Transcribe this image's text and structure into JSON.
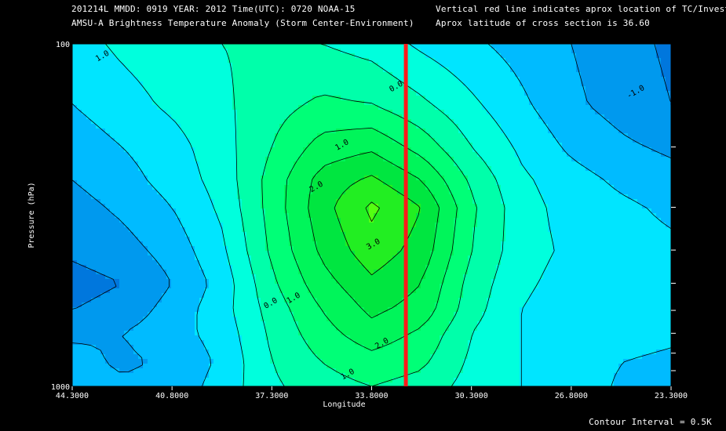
{
  "header": {
    "line1_left": "201214L  MMDD: 0919 YEAR: 2012 Time(UTC): 0720 NOAA-15",
    "line2_left": "AMSU-A Brightness Temperature Anomaly (Storm Center-Environment)",
    "line1_right": "Vertical red line indicates aprox location of TC/Invest",
    "line2_right": "Aprox latitude of cross section is 36.60"
  },
  "footer": {
    "contour_interval": "Contour Interval = 0.5K"
  },
  "chart_data": {
    "type": "heatmap",
    "xlabel": "Longitude",
    "ylabel": "Pressure (hPa)",
    "xlim": [
      44.3,
      23.3
    ],
    "ylim": [
      1000,
      100
    ],
    "y_scale": "log",
    "x_tick_labels": [
      "44.3000",
      "40.8000",
      "37.3000",
      "33.8000",
      "30.3000",
      "26.8000",
      "23.3000"
    ],
    "x_ticks": [
      44.3,
      40.8,
      37.3,
      33.8,
      30.3,
      26.8,
      23.3
    ],
    "y_tick_labels": [
      "100",
      "1000"
    ],
    "y_ticks": [
      100,
      1000
    ],
    "tc_longitude": 32.6,
    "contour_interval": 0.5,
    "contour_labels": [
      {
        "text": "1.0",
        "lon": 43.2,
        "p": 110
      },
      {
        "text": "0.0",
        "lon": 32.9,
        "p": 135
      },
      {
        "text": "1.0",
        "lon": 34.8,
        "p": 200
      },
      {
        "text": "2.0",
        "lon": 35.7,
        "p": 265
      },
      {
        "text": "3.0",
        "lon": 33.7,
        "p": 390
      },
      {
        "text": "-1.0",
        "lon": 24.5,
        "p": 140
      },
      {
        "text": "0.0",
        "lon": 37.3,
        "p": 580
      },
      {
        "text": "1.0",
        "lon": 36.5,
        "p": 560
      },
      {
        "text": "2.0",
        "lon": 33.4,
        "p": 760
      },
      {
        "text": "1.0",
        "lon": 34.6,
        "p": 935
      }
    ],
    "color_scale": [
      {
        "value": -2.0,
        "color": "#0077dd"
      },
      {
        "value": -1.5,
        "color": "#0099ee"
      },
      {
        "value": -1.0,
        "color": "#00bbff"
      },
      {
        "value": -0.5,
        "color": "#00e5ff"
      },
      {
        "value": 0.0,
        "color": "#00ffdd"
      },
      {
        "value": 0.5,
        "color": "#00ffaa"
      },
      {
        "value": 1.0,
        "color": "#00ff77"
      },
      {
        "value": 1.5,
        "color": "#00f55a"
      },
      {
        "value": 2.0,
        "color": "#00e640"
      },
      {
        "value": 2.5,
        "color": "#22ee22"
      },
      {
        "value": 3.0,
        "color": "#55ff11"
      }
    ],
    "levels_hpa": [
      100,
      150,
      200,
      250,
      300,
      400,
      500,
      600,
      700,
      850,
      1000
    ],
    "grid_lon": [
      44.3,
      42.55,
      40.8,
      39.05,
      37.3,
      35.55,
      33.8,
      32.05,
      30.3,
      28.55,
      26.8,
      25.05,
      23.3
    ],
    "values": [
      [
        -0.2,
        0.1,
        0.3,
        0.5,
        0.6,
        0.5,
        0.3,
        -0.1,
        -0.4,
        -0.7,
        -1.0,
        -1.3,
        -1.6
      ],
      [
        -0.5,
        -0.2,
        0.1,
        0.4,
        0.8,
        1.1,
        1.0,
        0.6,
        0.1,
        -0.4,
        -0.9,
        -1.2,
        -1.5
      ],
      [
        -0.8,
        -0.5,
        -0.2,
        0.3,
        1.0,
        1.7,
        1.9,
        1.3,
        0.5,
        -0.1,
        -0.6,
        -0.9,
        -1.1
      ],
      [
        -1.0,
        -0.7,
        -0.3,
        0.2,
        1.2,
        2.2,
        2.6,
        2.0,
        0.9,
        0.1,
        -0.3,
        -0.6,
        -0.8
      ],
      [
        -1.2,
        -0.9,
        -0.5,
        0.1,
        1.2,
        2.3,
        3.1,
        2.5,
        1.1,
        0.2,
        -0.2,
        -0.4,
        -0.6
      ],
      [
        -1.4,
        -1.2,
        -0.8,
        -0.1,
        1.1,
        2.1,
        2.8,
        2.3,
        1.0,
        0.2,
        -0.1,
        -0.3,
        -0.4
      ],
      [
        -1.7,
        -1.5,
        -1.0,
        -0.3,
        0.9,
        1.8,
        2.4,
        2.0,
        0.8,
        0.1,
        -0.2,
        -0.3,
        -0.3
      ],
      [
        -1.5,
        -1.3,
        -0.8,
        -0.2,
        0.7,
        1.5,
        2.1,
        1.8,
        0.7,
        0.0,
        -0.3,
        -0.2,
        -0.3
      ],
      [
        -1.1,
        -1.0,
        -0.7,
        -0.3,
        0.6,
        1.3,
        1.8,
        1.4,
        0.5,
        0.0,
        -0.2,
        -0.3,
        -0.4
      ],
      [
        -0.8,
        -1.1,
        -0.9,
        -0.4,
        0.5,
        1.0,
        1.3,
        1.1,
        0.4,
        0.0,
        -0.1,
        -0.5,
        -0.6
      ],
      [
        -0.6,
        -0.9,
        -0.8,
        -0.3,
        0.4,
        0.8,
        1.0,
        0.8,
        0.3,
        0.0,
        -0.1,
        -0.6,
        -0.8
      ]
    ]
  }
}
